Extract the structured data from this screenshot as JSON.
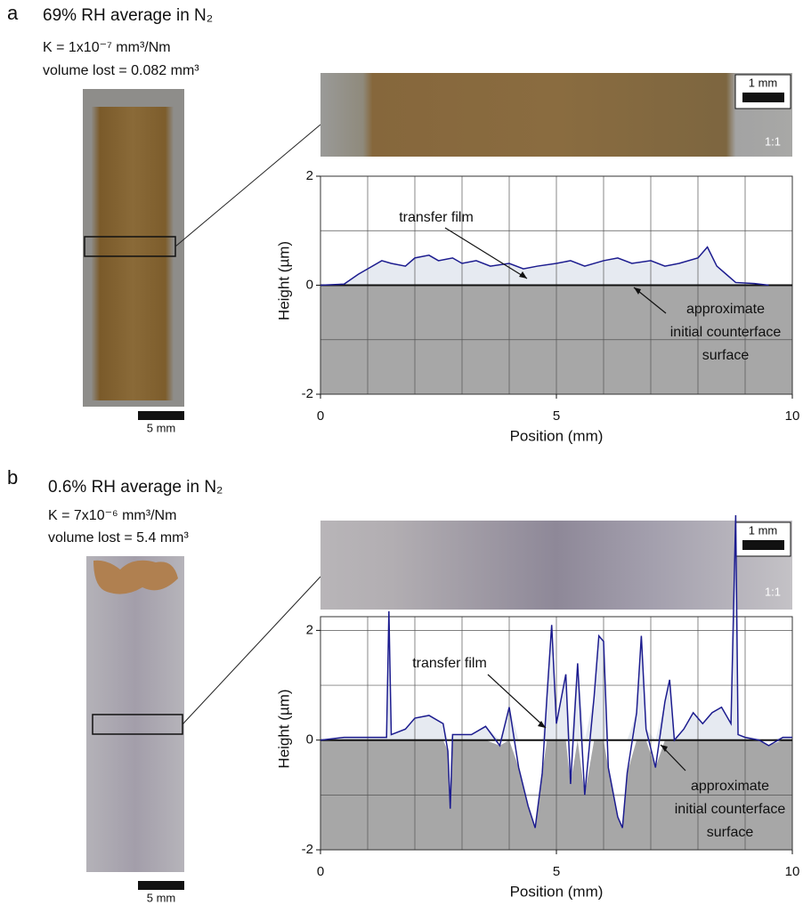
{
  "panels": [
    {
      "letter": "a",
      "heading": "69% RH average in N₂",
      "k": "K = 1x10⁻⁷ mm³/Nm",
      "volume": "volume lost = 0.082 mm³",
      "scale_bar": "5 mm",
      "inset_scale_bar": "1 mm",
      "inset_ratio": "1:1"
    },
    {
      "letter": "b",
      "heading": "0.6% RH average in N₂",
      "k": "K = 7x10⁻⁶ mm³/Nm",
      "volume": "volume lost = 5.4 mm³",
      "scale_bar": "5 mm",
      "inset_scale_bar": "1 mm",
      "inset_ratio": "1:1"
    }
  ],
  "chart_data": [
    {
      "type": "line",
      "x_label": "Position (mm)",
      "y_label": "Height (µm)",
      "color": "#1c1c8f",
      "x": [
        0,
        0.5,
        0.8,
        1.0,
        1.3,
        1.5,
        1.8,
        2.0,
        2.3,
        2.5,
        2.8,
        3.0,
        3.3,
        3.6,
        4.0,
        4.3,
        4.6,
        5.0,
        5.3,
        5.6,
        6.0,
        6.3,
        6.6,
        7.0,
        7.3,
        7.6,
        8.0,
        8.2,
        8.4,
        8.6,
        8.8,
        9.2,
        9.5
      ],
      "values": [
        0,
        0.02,
        0.2,
        0.3,
        0.45,
        0.4,
        0.35,
        0.5,
        0.55,
        0.45,
        0.5,
        0.4,
        0.45,
        0.35,
        0.4,
        0.3,
        0.35,
        0.4,
        0.45,
        0.35,
        0.45,
        0.5,
        0.4,
        0.45,
        0.35,
        0.4,
        0.5,
        0.7,
        0.35,
        0.2,
        0.05,
        0.03,
        0
      ],
      "xlim": [
        0,
        10
      ],
      "ylim": [
        -2,
        2
      ],
      "xticks": [
        0,
        5,
        10
      ],
      "yticks": [
        -2,
        0,
        2
      ],
      "xgrid": [
        0,
        1,
        2,
        3,
        4,
        5,
        6,
        7,
        8,
        9,
        10
      ],
      "ygrid": [
        -2,
        -1,
        0,
        1,
        2
      ],
      "grid": true,
      "annotations": {
        "film": "transfer film",
        "surface": [
          "approximate",
          "initial counterface",
          "surface"
        ]
      }
    },
    {
      "type": "line",
      "x_label": "Position (mm)",
      "y_label": "Height (µm)",
      "color": "#1c1c8f",
      "x": [
        0,
        0.5,
        1.0,
        1.4,
        1.45,
        1.5,
        1.8,
        2.0,
        2.3,
        2.6,
        2.7,
        2.75,
        2.8,
        3.2,
        3.5,
        3.8,
        4.0,
        4.2,
        4.4,
        4.55,
        4.7,
        4.8,
        4.9,
        5.0,
        5.2,
        5.3,
        5.45,
        5.6,
        5.8,
        5.9,
        6.0,
        6.1,
        6.3,
        6.4,
        6.5,
        6.7,
        6.8,
        6.9,
        7.1,
        7.3,
        7.4,
        7.5,
        7.7,
        7.9,
        8.1,
        8.3,
        8.5,
        8.7,
        8.8,
        8.85,
        9.0,
        9.3,
        9.5,
        9.8,
        10
      ],
      "values": [
        0,
        0.05,
        0.05,
        0.05,
        2.35,
        0.1,
        0.2,
        0.4,
        0.45,
        0.3,
        -0.2,
        -1.25,
        0.1,
        0.1,
        0.25,
        -0.1,
        0.6,
        -0.5,
        -1.2,
        -1.6,
        -0.6,
        0.8,
        2.1,
        0.3,
        1.2,
        -0.8,
        1.4,
        -1.0,
        0.8,
        1.9,
        1.8,
        -0.5,
        -1.4,
        -1.6,
        -0.6,
        0.5,
        1.9,
        0.2,
        -0.5,
        0.7,
        1.1,
        0,
        0.2,
        0.5,
        0.3,
        0.5,
        0.6,
        0.3,
        4.1,
        0.1,
        0.05,
        0,
        -0.1,
        0.05,
        0.05
      ],
      "xlim": [
        0,
        10
      ],
      "ylim": [
        -2,
        2.25
      ],
      "xticks": [
        0,
        5,
        10
      ],
      "yticks": [
        -2,
        0,
        2
      ],
      "xgrid": [
        0,
        1,
        2,
        3,
        4,
        5,
        6,
        7,
        8,
        9,
        10
      ],
      "ygrid": [
        -2,
        -1,
        0,
        1,
        2
      ],
      "grid": true,
      "annotations": {
        "film": "transfer film",
        "surface": [
          "approximate",
          "initial counterface",
          "surface"
        ]
      }
    }
  ]
}
